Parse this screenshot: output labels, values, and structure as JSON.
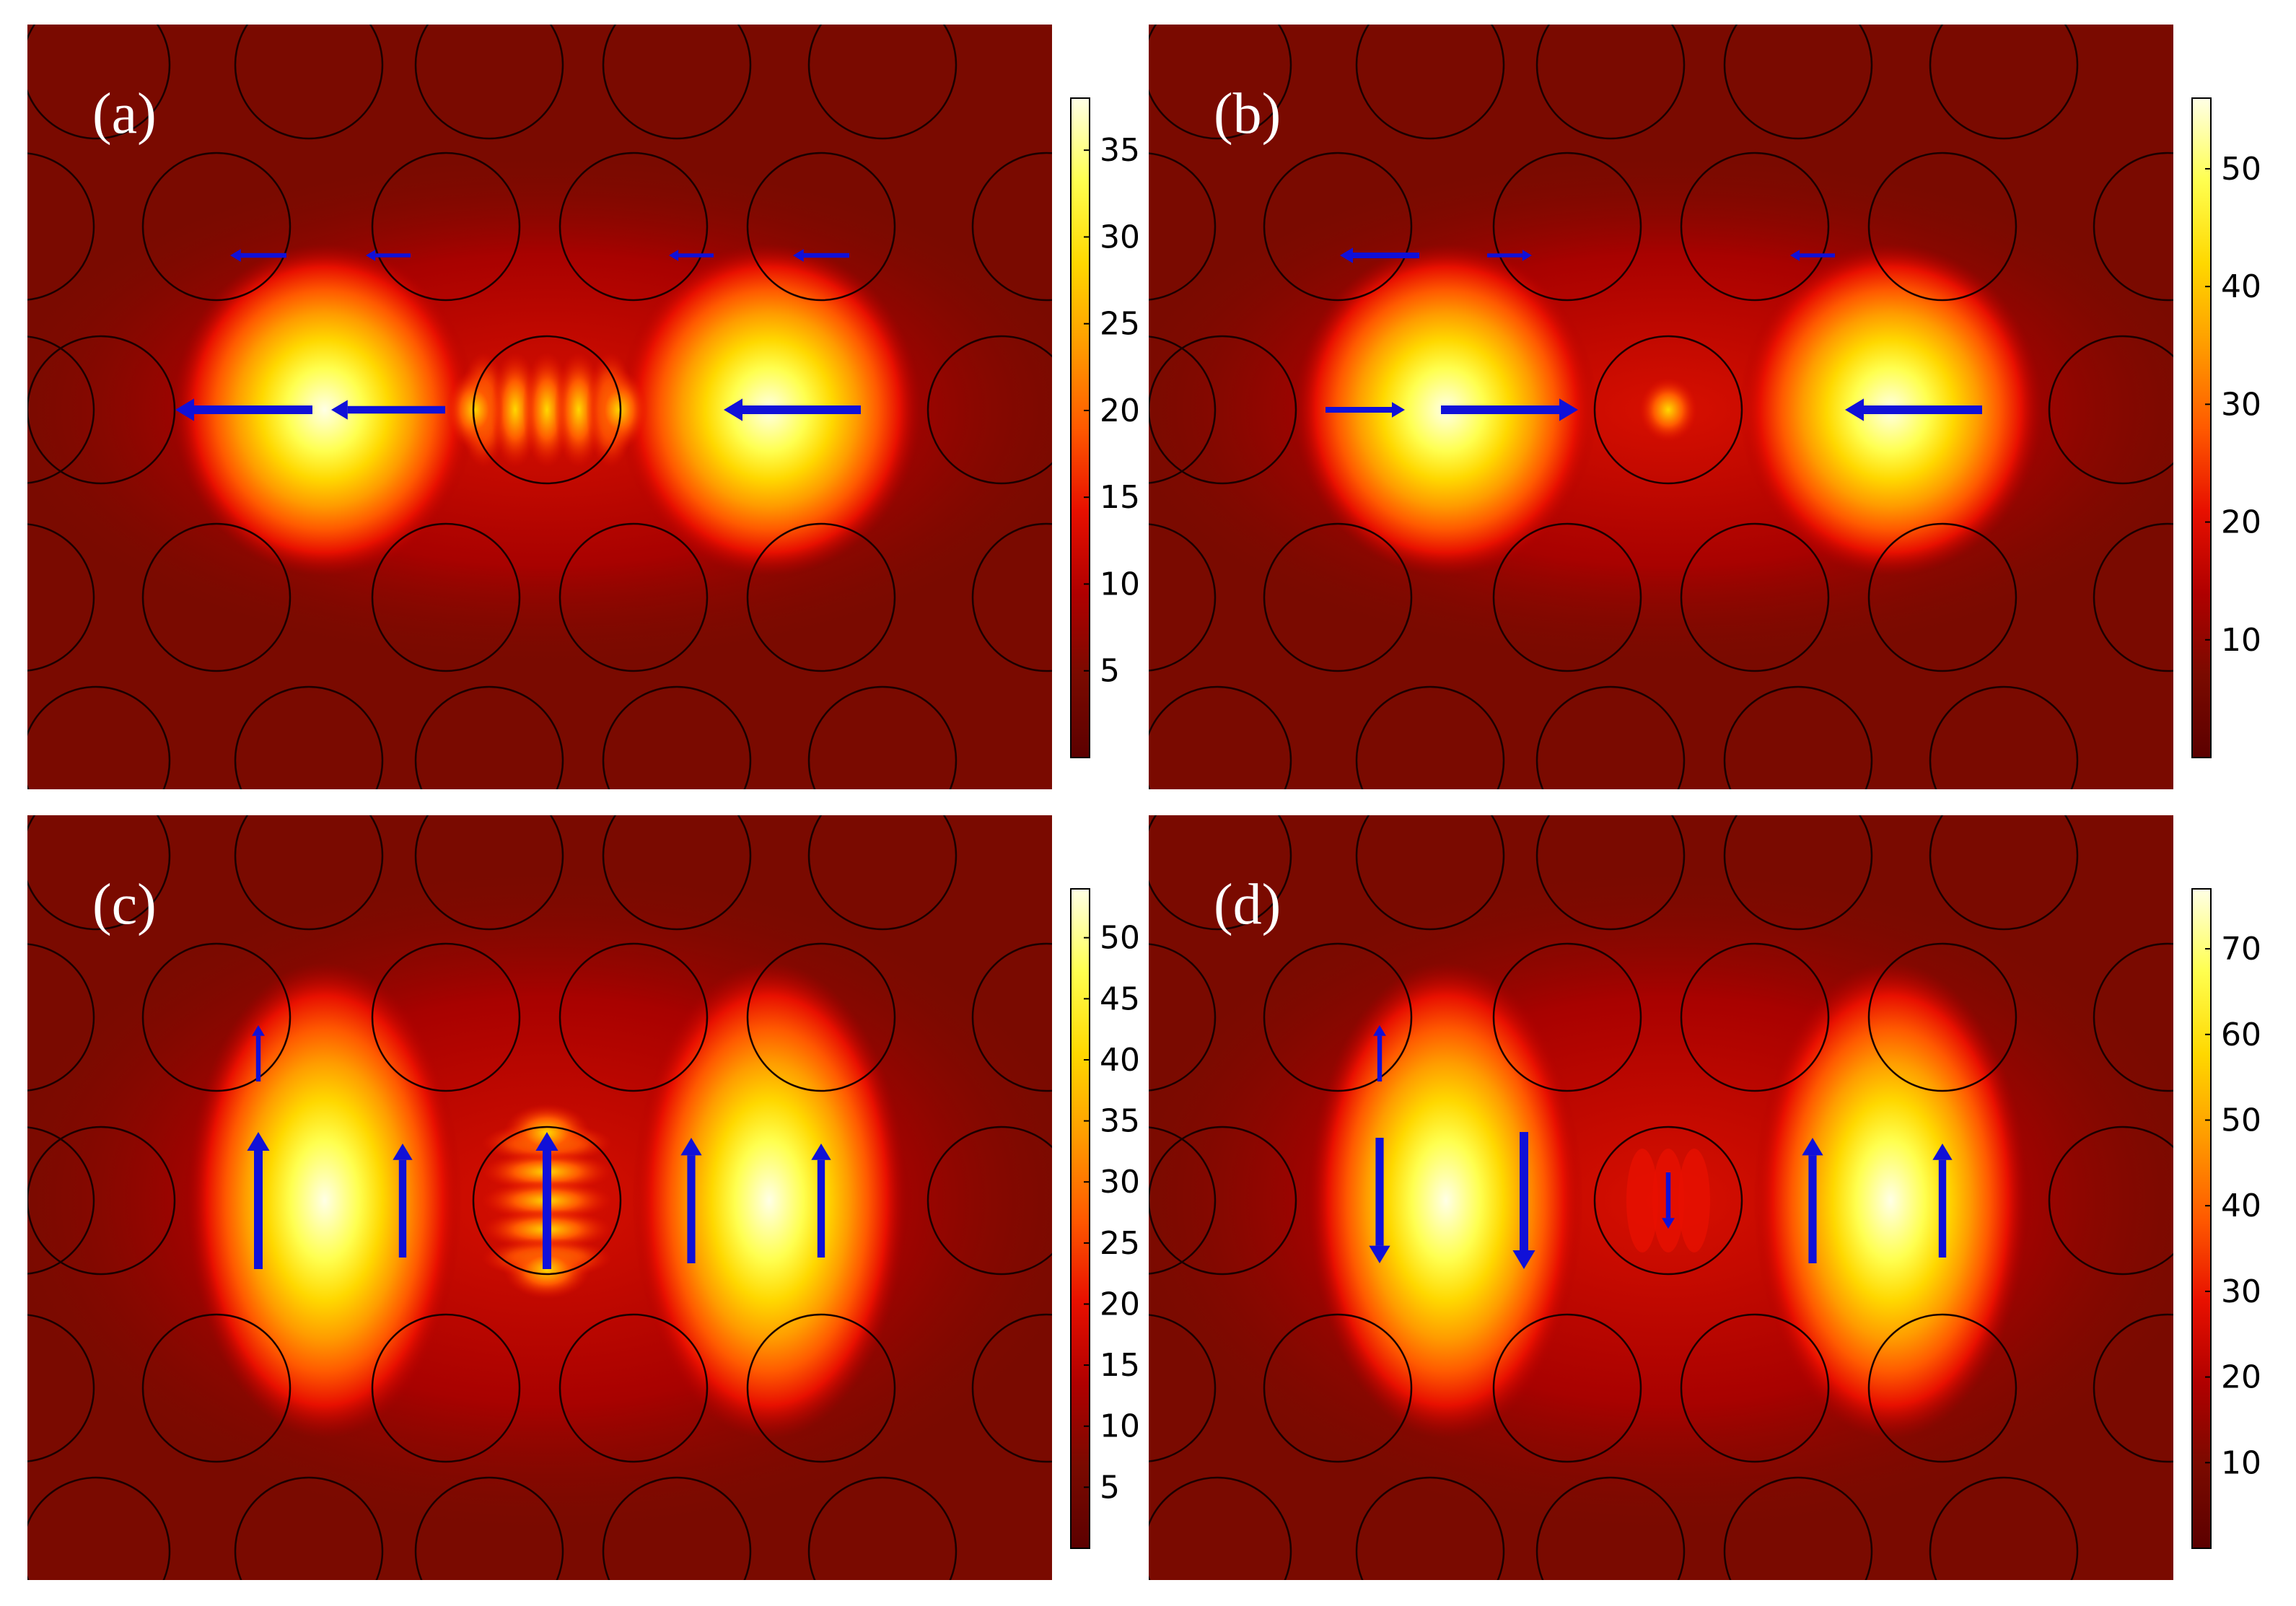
{
  "colors": {
    "colormap": [
      "#5c0000",
      "#7a0a00",
      "#b00000",
      "#e81000",
      "#ff5a00",
      "#ff9c00",
      "#ffd800",
      "#ffff50",
      "#ffffe6"
    ],
    "arrow": "#1010d8",
    "rod_outline": "#1a0000",
    "label": "#ffffff"
  },
  "panels": [
    {
      "label": "(a)",
      "colorbar": {
        "max": 38,
        "ticks": [
          "5",
          "10",
          "15",
          "20",
          "25",
          "30",
          "35"
        ]
      },
      "center_pattern": "horizontal-fringes",
      "hotspot_profile": {
        "peak": 0.9,
        "shape": "round"
      },
      "arrows": [
        {
          "dir": "left",
          "strength": 1.0
        },
        {
          "dir": "left",
          "strength": 0.8
        },
        {
          "dir": "left",
          "strength": 1.0
        },
        {
          "dir": "left",
          "strength": 0.3
        },
        {
          "dir": "left",
          "strength": 0.2
        },
        {
          "dir": "left",
          "strength": 0.2
        },
        {
          "dir": "left",
          "strength": 0.3
        }
      ]
    },
    {
      "label": "(b)",
      "colorbar": {
        "max": 56,
        "ticks": [
          "10",
          "20",
          "30",
          "40",
          "50"
        ]
      },
      "center_pattern": "central-spot",
      "hotspot_profile": {
        "peak": 1.0,
        "shape": "round"
      },
      "arrows": [
        {
          "dir": "right",
          "strength": 0.5
        },
        {
          "dir": "right",
          "strength": 1.0
        },
        {
          "dir": "left",
          "strength": 1.0
        },
        {
          "dir": "left",
          "strength": 0.5
        },
        {
          "dir": "right",
          "strength": 0.2
        },
        {
          "dir": "left",
          "strength": 0.2
        }
      ]
    },
    {
      "label": "(c)",
      "colorbar": {
        "max": 54,
        "ticks": [
          "5",
          "10",
          "15",
          "20",
          "25",
          "30",
          "35",
          "40",
          "45",
          "50"
        ]
      },
      "center_pattern": "vertical-fringes",
      "hotspot_profile": {
        "peak": 1.0,
        "shape": "tall"
      },
      "arrows": [
        {
          "dir": "up",
          "strength": 1.0
        },
        {
          "dir": "up",
          "strength": 0.8
        },
        {
          "dir": "up",
          "strength": 0.9
        },
        {
          "dir": "up",
          "strength": 0.8
        },
        {
          "dir": "up",
          "strength": 1.0
        },
        {
          "dir": "up",
          "strength": 0.3
        }
      ]
    },
    {
      "label": "(d)",
      "colorbar": {
        "max": 77,
        "ticks": [
          "10",
          "20",
          "30",
          "40",
          "50",
          "60",
          "70"
        ]
      },
      "center_pattern": "weak-vertical-fringes",
      "hotspot_profile": {
        "peak": 1.0,
        "shape": "tall"
      },
      "arrows": [
        {
          "dir": "down",
          "strength": 0.9
        },
        {
          "dir": "down",
          "strength": 1.0
        },
        {
          "dir": "up",
          "strength": 0.9
        },
        {
          "dir": "up",
          "strength": 0.8
        },
        {
          "dir": "down",
          "strength": 0.3
        },
        {
          "dir": "up",
          "strength": 0.3
        }
      ]
    }
  ]
}
